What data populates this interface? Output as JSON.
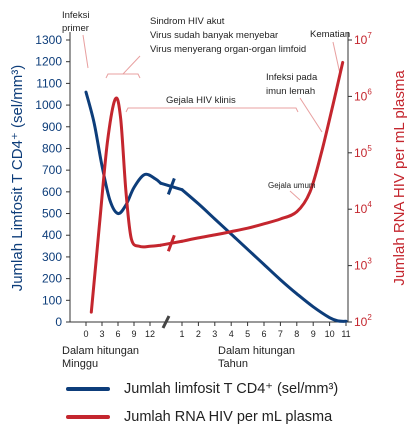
{
  "chart_data": {
    "type": "line",
    "colors": {
      "cd4": "#0d3d7a",
      "rna": "#c4262e",
      "axis": "#333333",
      "annotation": "#e8a0a0"
    },
    "y_left": {
      "label": "Jumlah Limfosit T CD4⁺ (sel/mm³)",
      "ticks": [
        0,
        100,
        200,
        300,
        400,
        500,
        600,
        700,
        800,
        900,
        1000,
        1100,
        1200,
        1300
      ],
      "ylim": [
        0,
        1300
      ]
    },
    "y_right": {
      "label": "Jumlah RNA HIV per mL plasma",
      "scale": "log",
      "ticks": [
        {
          "exp": "2",
          "value": 100
        },
        {
          "exp": "3",
          "value": 1000
        },
        {
          "exp": "4",
          "value": 10000
        },
        {
          "exp": "5",
          "value": 100000
        },
        {
          "exp": "6",
          "value": 1000000
        },
        {
          "exp": "7",
          "value": 10000000
        }
      ]
    },
    "x_weeks": {
      "label_line1": "Dalam hitungan",
      "label_line2": "Minggu",
      "ticks": [
        "0",
        "3",
        "6",
        "9",
        "12"
      ]
    },
    "x_years": {
      "label_line1": "Dalam hitungan",
      "label_line2": "Tahun",
      "ticks": [
        "1",
        "2",
        "3",
        "4",
        "5",
        "6",
        "7",
        "8",
        "9",
        "10",
        "11"
      ]
    },
    "series": [
      {
        "name": "Jumlah limfosit T CD4⁺ (sel/mm³)",
        "segments": [
          {
            "axis": "weeks",
            "points": [
              [
                0,
                1060
              ],
              [
                1.5,
                920
              ],
              [
                3,
                720
              ],
              [
                4.5,
                560
              ],
              [
                6,
                500
              ],
              [
                7.5,
                540
              ],
              [
                9,
                620
              ],
              [
                11,
                680
              ],
              [
                13,
                660
              ],
              [
                14,
                640
              ]
            ]
          },
          {
            "axis": "years",
            "points": [
              [
                1,
                610
              ],
              [
                2,
                545
              ],
              [
                3,
                475
              ],
              [
                4,
                405
              ],
              [
                5,
                335
              ],
              [
                6,
                265
              ],
              [
                7,
                195
              ],
              [
                8,
                130
              ],
              [
                9,
                70
              ],
              [
                10,
                20
              ],
              [
                10.5,
                5
              ],
              [
                11,
                3
              ]
            ]
          }
        ]
      },
      {
        "name": "Jumlah RNA HIV per mL plasma",
        "segments": [
          {
            "axis": "weeks",
            "points": [
              [
                1,
                150
              ],
              [
                2.5,
                5000
              ],
              [
                4,
                150000
              ],
              [
                5.5,
                900000
              ],
              [
                6.5,
                400000
              ],
              [
                7.5,
                20000
              ],
              [
                8.5,
                3000
              ],
              [
                10,
                2200
              ],
              [
                12,
                2200
              ],
              [
                14,
                2300
              ]
            ]
          },
          {
            "axis": "years",
            "points": [
              [
                1,
                2700
              ],
              [
                2,
                3100
              ],
              [
                3,
                3500
              ],
              [
                4,
                4000
              ],
              [
                5,
                4600
              ],
              [
                6,
                5500
              ],
              [
                7,
                6700
              ],
              [
                8,
                9000
              ],
              [
                8.8,
                20000
              ],
              [
                9.5,
                100000
              ],
              [
                10.2,
                700000
              ],
              [
                10.8,
                4000000
              ]
            ]
          }
        ]
      }
    ],
    "annotations": {
      "infection_line1": "Infeksi",
      "infection_line2": "primer",
      "acute_line1": "Sindrom HIV akut",
      "acute_line2": "Virus sudah banyak menyebar",
      "acute_line3": "Virus menyerang organ-organ limfoid",
      "clinical": "Gejala HIV klinis",
      "opportunistic_line1": "Infeksi pada",
      "opportunistic_line2": "imun lemah",
      "death": "Kematian",
      "general": "Gejala umum"
    },
    "legend": [
      {
        "key": "cd4",
        "label": "Jumlah limfosit T CD4⁺ (sel/mm³)"
      },
      {
        "key": "rna",
        "label": "Jumlah RNA HIV per mL plasma"
      }
    ]
  }
}
